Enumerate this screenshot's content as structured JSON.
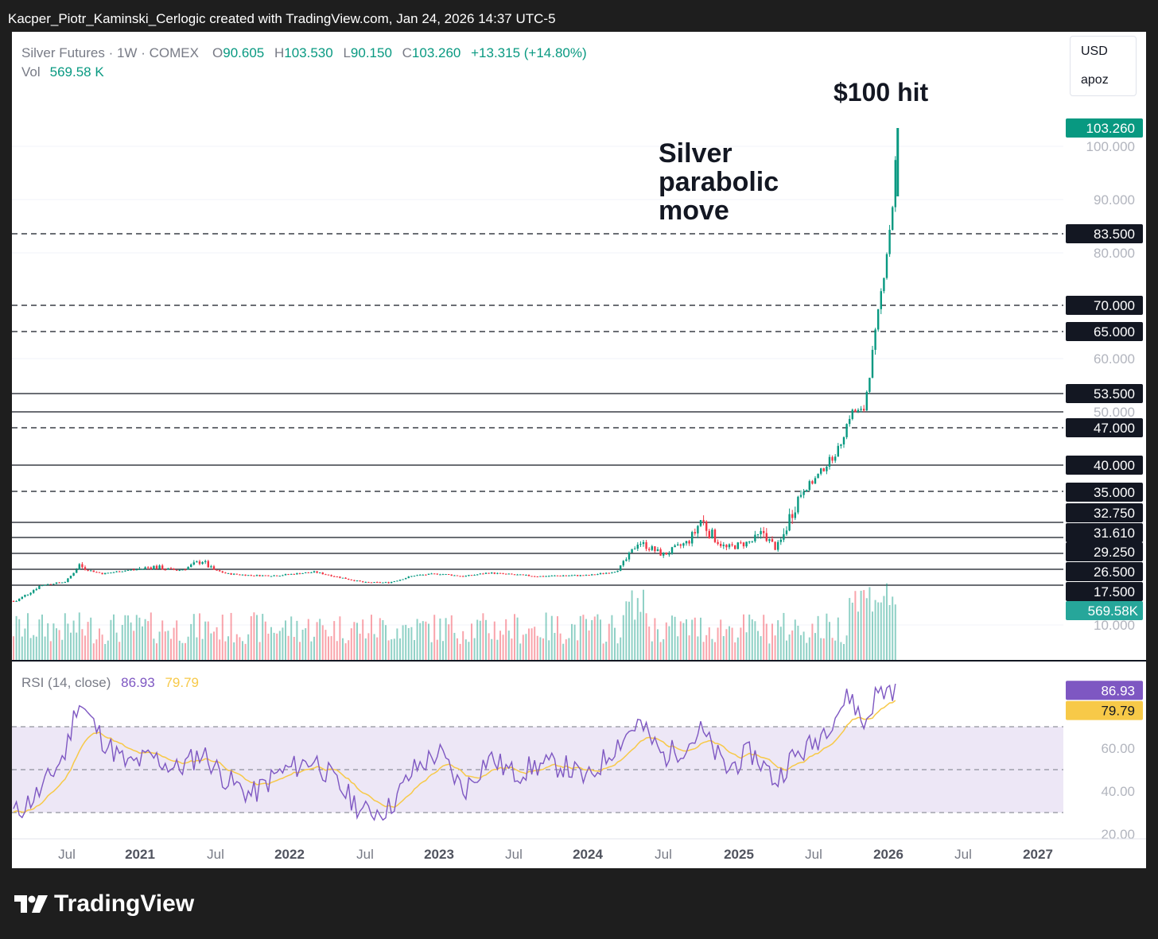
{
  "header": {
    "caption": "Kacper_Piotr_Kaminski_Cerlogic created with TradingView.com, Jan 24, 2026 14:37 UTC-5"
  },
  "legend": {
    "symbol": "Silver Futures · 1W · COMEX",
    "o_label": "O",
    "o_val": "90.605",
    "h_label": "H",
    "h_val": "103.530",
    "l_label": "L",
    "l_val": "90.150",
    "c_label": "C",
    "c_val": "103.260",
    "change": "+13.315 (+14.80%)",
    "vol_label": "Vol",
    "vol_val": "569.58 K"
  },
  "currency_box": {
    "currency": "USD",
    "unit": "apoz"
  },
  "annotations": {
    "parabolic": [
      "Silver",
      "parabolic",
      "move"
    ],
    "hit": "$100 hit"
  },
  "footer": {
    "brand": "TradingView"
  },
  "colors": {
    "up": "#089981",
    "down": "#f23645",
    "rsi": "#7e57c2",
    "rsi_ma": "#f7c948",
    "rsi_band": "#ede7f6"
  },
  "chart_data": {
    "type": "line",
    "title": "",
    "xlabel": "",
    "ylabel": "",
    "price_axis": {
      "labels": [
        "100.000",
        "90.000",
        "80.000",
        "60.000",
        "50.000",
        "10.000"
      ],
      "ylim": [
        0,
        110
      ]
    },
    "x_ticks": [
      "Jul",
      "2021",
      "Jul",
      "2022",
      "Jul",
      "2023",
      "Jul",
      "2024",
      "Jul",
      "2025",
      "Jul",
      "2026",
      "Jul",
      "2027"
    ],
    "levels": [
      {
        "value": 83.5,
        "label": "83.500",
        "style": "dashed"
      },
      {
        "value": 70.0,
        "label": "70.000",
        "style": "dashed"
      },
      {
        "value": 65.0,
        "label": "65.000",
        "style": "dashed"
      },
      {
        "value": 53.5,
        "label": "53.500",
        "style": "solid"
      },
      {
        "value": 50.0,
        "label": "",
        "style": "solid"
      },
      {
        "value": 47.0,
        "label": "47.000",
        "style": "dashed"
      },
      {
        "value": 40.0,
        "label": "40.000",
        "style": "solid"
      },
      {
        "value": 35.0,
        "label": "35.000",
        "style": "dashed"
      },
      {
        "value": 32.75,
        "label": "32.750",
        "style": "solid"
      },
      {
        "value": 31.61,
        "label": "31.610",
        "style": "solid"
      },
      {
        "value": 29.25,
        "label": "29.250",
        "style": "solid"
      },
      {
        "value": 26.5,
        "label": "26.500",
        "style": "solid"
      },
      {
        "value": 17.5,
        "label": "17.500",
        "style": "solid"
      }
    ],
    "last_price": {
      "value": 103.26,
      "label": "103.260"
    },
    "volume_badge": "569.58K",
    "price_series": {
      "name": "Silver Futures",
      "dates": [
        "2020-03",
        "2020-05",
        "2020-07",
        "2020-08",
        "2020-10",
        "2020-12",
        "2021-02",
        "2021-04",
        "2021-06",
        "2021-08",
        "2021-10",
        "2021-12",
        "2022-03",
        "2022-05",
        "2022-07",
        "2022-09",
        "2022-11",
        "2023-01",
        "2023-03",
        "2023-05",
        "2023-07",
        "2023-09",
        "2023-11",
        "2024-01",
        "2024-03",
        "2024-05",
        "2024-07",
        "2024-09",
        "2024-10",
        "2024-12",
        "2025-02",
        "2025-03",
        "2025-04",
        "2025-05",
        "2025-07",
        "2025-09",
        "2025-10",
        "2025-11",
        "2025-12",
        "2026-01a",
        "2026-01b"
      ],
      "close": [
        14.5,
        17.5,
        19.5,
        27.5,
        24,
        26,
        27,
        26,
        28,
        24,
        23,
        23,
        25,
        22,
        19,
        19,
        23,
        24,
        22.5,
        24.5,
        23.5,
        22.5,
        23,
        23,
        25,
        31,
        29,
        31,
        33,
        30,
        31,
        32,
        30,
        33,
        37,
        43,
        50,
        50,
        65,
        88,
        103.26
      ]
    },
    "volume": {
      "last": "569.58 K"
    },
    "rsi": {
      "label": "RSI (14, close)",
      "value": "86.93",
      "ma_value": "79.79",
      "axis_labels": [
        "60.00",
        "40.00",
        "20.00"
      ],
      "band": [
        30,
        70
      ],
      "ylim": [
        20,
        90
      ],
      "dates": [
        "2020-03",
        "2020-05",
        "2020-07",
        "2020-08",
        "2020-10",
        "2020-12",
        "2021-02",
        "2021-04",
        "2021-06",
        "2021-08",
        "2021-10",
        "2021-12",
        "2022-03",
        "2022-05",
        "2022-07",
        "2022-09",
        "2022-11",
        "2023-01",
        "2023-03",
        "2023-05",
        "2023-07",
        "2023-09",
        "2023-11",
        "2024-01",
        "2024-03",
        "2024-05",
        "2024-07",
        "2024-09",
        "2024-10",
        "2024-12",
        "2025-02",
        "2025-03",
        "2025-04",
        "2025-05",
        "2025-07",
        "2025-09",
        "2025-10",
        "2025-11",
        "2025-12",
        "2026-01a",
        "2026-01b"
      ],
      "values": [
        30,
        40,
        58,
        83,
        64,
        52,
        56,
        50,
        58,
        45,
        38,
        48,
        55,
        42,
        30,
        32,
        50,
        58,
        40,
        56,
        48,
        52,
        52,
        45,
        60,
        72,
        56,
        62,
        68,
        50,
        58,
        52,
        44,
        54,
        62,
        78,
        85,
        70,
        85,
        88,
        86.93
      ]
    }
  }
}
